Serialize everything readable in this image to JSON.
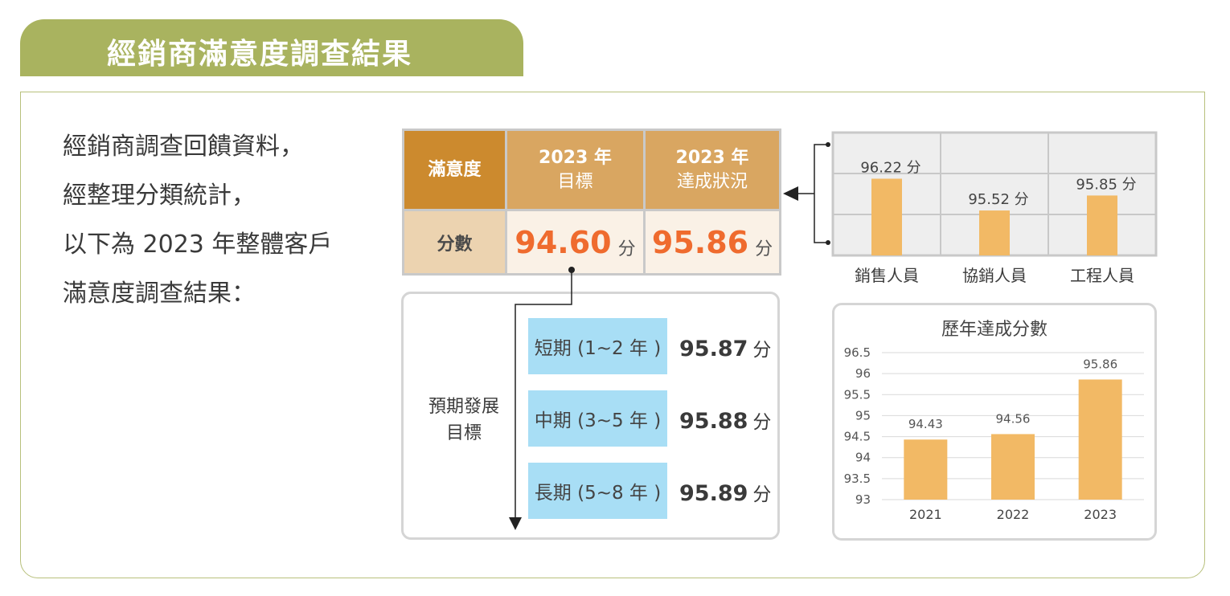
{
  "title": "經銷商滿意度調查結果",
  "intro_lines": [
    "經銷商調查回饋資料，",
    "經整理分類統計，",
    "以下為 2023 年整體客戶",
    "滿意度調查結果："
  ],
  "target_table": {
    "corner": "滿意度",
    "col1_line1": "2023 年",
    "col1_line2": "目標",
    "col2_line1": "2023 年",
    "col2_line2": "達成狀況",
    "row_label": "分數",
    "target_score": "94.60",
    "actual_score": "95.86",
    "unit": "分"
  },
  "goals": {
    "label_line1": "預期發展",
    "label_line2": "目標",
    "items": [
      {
        "period": "短期 (1~2 年 )",
        "value": "95.87",
        "unit": "分"
      },
      {
        "period": "中期 (3~5 年 )",
        "value": "95.88",
        "unit": "分"
      },
      {
        "period": "長期 (5~8 年 )",
        "value": "95.89",
        "unit": "分"
      }
    ]
  },
  "colors": {
    "title_bg": "#a9b35f",
    "header_dark": "#cc8a2e",
    "header_light": "#d9a661",
    "row_label_bg": "#ecd3b0",
    "row_value_bg": "#faf1e6",
    "score": "#ef6b2e",
    "bar": "#f2b965",
    "period_bg": "#a8def5"
  },
  "chart_data": [
    {
      "type": "bar",
      "categories": [
        "銷售人員",
        "協銷人員",
        "工程人員"
      ],
      "values": [
        96.22,
        95.52,
        95.85
      ],
      "value_labels": [
        "96.22 分",
        "95.52 分",
        "95.85 分"
      ],
      "grid": true
    },
    {
      "type": "bar",
      "title": "歷年達成分數",
      "categories": [
        "2021",
        "2022",
        "2023"
      ],
      "values": [
        94.43,
        94.56,
        95.86
      ],
      "value_labels": [
        "94.43",
        "94.56",
        "95.86"
      ],
      "yticks": [
        "93",
        "93.5",
        "94",
        "94.5",
        "95",
        "95.5",
        "96",
        "96.5"
      ],
      "ylim": [
        93,
        96.5
      ],
      "grid": true
    }
  ]
}
